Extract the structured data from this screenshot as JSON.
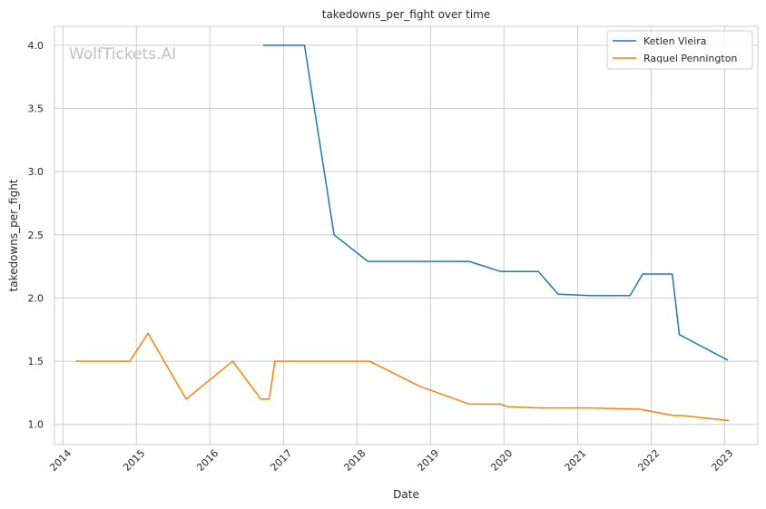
{
  "chart_data": {
    "type": "line",
    "title": "takedowns_per_fight over time",
    "xlabel": "Date",
    "ylabel": "takedowns_per_fight",
    "watermark": "WolfTickets.AI",
    "grid": true,
    "legend_position": "top-right",
    "xlim": [
      "2013-11-20",
      "2023-06-15"
    ],
    "ylim": [
      0.84,
      4.15
    ],
    "x_ticks": [
      "2014",
      "2015",
      "2016",
      "2017",
      "2018",
      "2019",
      "2020",
      "2021",
      "2022",
      "2023"
    ],
    "y_ticks": [
      "1.0",
      "1.5",
      "2.0",
      "2.5",
      "3.0",
      "3.5",
      "4.0"
    ],
    "series": [
      {
        "name": "Ketlen Vieira",
        "color": "#1f77b4",
        "points": [
          [
            "2016-09-24",
            4.0
          ],
          [
            "2017-04-15",
            4.0
          ],
          [
            "2017-09-09",
            2.5
          ],
          [
            "2018-02-24",
            2.29
          ],
          [
            "2019-07-13",
            2.29
          ],
          [
            "2019-12-14",
            2.21
          ],
          [
            "2020-06-20",
            2.21
          ],
          [
            "2020-09-26",
            2.03
          ],
          [
            "2021-02-27",
            2.02
          ],
          [
            "2021-09-18",
            2.02
          ],
          [
            "2021-11-20",
            2.19
          ],
          [
            "2022-04-16",
            2.19
          ],
          [
            "2022-05-21",
            1.71
          ],
          [
            "2023-01-14",
            1.51
          ]
        ]
      },
      {
        "name": "Raquel Pennington",
        "color": "#ff7f0e",
        "points": [
          [
            "2014-03-08",
            1.5
          ],
          [
            "2014-11-29",
            1.5
          ],
          [
            "2015-02-28",
            1.72
          ],
          [
            "2015-09-05",
            1.2
          ],
          [
            "2016-04-23",
            1.5
          ],
          [
            "2016-09-10",
            1.2
          ],
          [
            "2016-10-22",
            1.2
          ],
          [
            "2016-11-19",
            1.5
          ],
          [
            "2018-03-03",
            1.5
          ],
          [
            "2018-05-19",
            1.44
          ],
          [
            "2018-11-10",
            1.3
          ],
          [
            "2019-07-13",
            1.16
          ],
          [
            "2019-12-14",
            1.16
          ],
          [
            "2020-01-18",
            1.14
          ],
          [
            "2020-06-27",
            1.13
          ],
          [
            "2021-03-06",
            1.13
          ],
          [
            "2021-11-06",
            1.12
          ],
          [
            "2022-04-23",
            1.07
          ],
          [
            "2022-06-04",
            1.07
          ],
          [
            "2023-01-21",
            1.03
          ]
        ]
      }
    ]
  }
}
